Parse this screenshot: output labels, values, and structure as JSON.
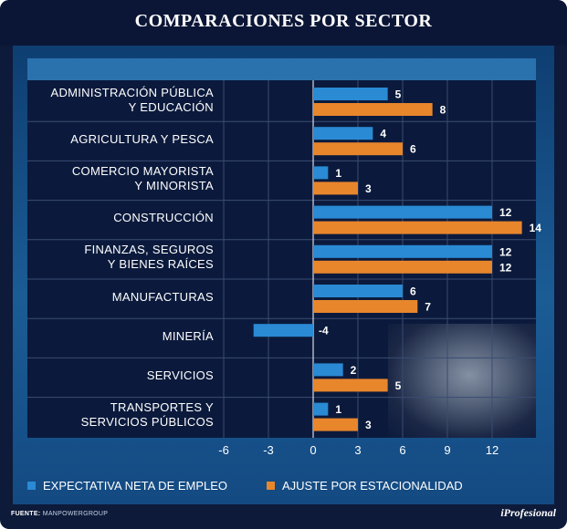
{
  "title": "COMPARACIONES POR SECTOR",
  "chart_data": {
    "type": "bar",
    "orientation": "horizontal",
    "title": "COMPARACIONES POR SECTOR",
    "categories": [
      [
        "ADMINISTRACIÓN PÚBLICA",
        "Y EDUCACIÓN"
      ],
      [
        "AGRICULTURA Y PESCA"
      ],
      [
        "COMERCIO MAYORISTA",
        "Y MINORISTA"
      ],
      [
        "CONSTRUCCIÓN"
      ],
      [
        "FINANZAS, SEGUROS",
        "Y BIENES RAÍCES"
      ],
      [
        "MANUFACTURAS"
      ],
      [
        "MINERÍA"
      ],
      [
        "SERVICIOS"
      ],
      [
        "TRANSPORTES Y",
        "SERVICIOS PÚBLICOS"
      ]
    ],
    "series": [
      {
        "name": "EXPECTATIVA NETA DE EMPLEO",
        "color": "#2a8ad4",
        "values": [
          5,
          4,
          1,
          12,
          12,
          6,
          -4,
          2,
          1
        ]
      },
      {
        "name": "AJUSTE POR ESTACIONALIDAD",
        "color": "#e8862c",
        "values": [
          8,
          6,
          3,
          14,
          12,
          7,
          null,
          5,
          3
        ]
      }
    ],
    "xlim": [
      -6,
      14
    ],
    "xticks": [
      "-6",
      "-3",
      "0",
      "3",
      "6",
      "9",
      "12"
    ],
    "legend": "bottom"
  },
  "footer": {
    "source_label": "FUENTE:",
    "source_value": "MANPOWERGROUP",
    "brand": "iProfesional"
  }
}
